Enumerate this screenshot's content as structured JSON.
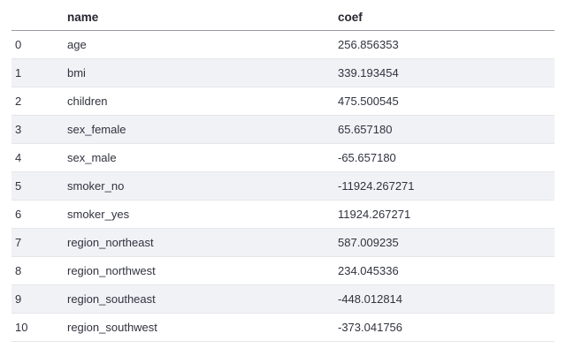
{
  "table": {
    "columns": {
      "index": "",
      "name": "name",
      "coef": "coef"
    },
    "rows": [
      {
        "index": "0",
        "name": "age",
        "coef": "256.856353"
      },
      {
        "index": "1",
        "name": "bmi",
        "coef": "339.193454"
      },
      {
        "index": "2",
        "name": "children",
        "coef": "475.500545"
      },
      {
        "index": "3",
        "name": "sex_female",
        "coef": "65.657180"
      },
      {
        "index": "4",
        "name": "sex_male",
        "coef": "-65.657180"
      },
      {
        "index": "5",
        "name": "smoker_no",
        "coef": "-11924.267271"
      },
      {
        "index": "6",
        "name": "smoker_yes",
        "coef": "11924.267271"
      },
      {
        "index": "7",
        "name": "region_northeast",
        "coef": "587.009235"
      },
      {
        "index": "8",
        "name": "region_northwest",
        "coef": "234.045336"
      },
      {
        "index": "9",
        "name": "region_southeast",
        "coef": "-448.012814"
      },
      {
        "index": "10",
        "name": "region_southwest",
        "coef": "-373.041756"
      }
    ]
  }
}
